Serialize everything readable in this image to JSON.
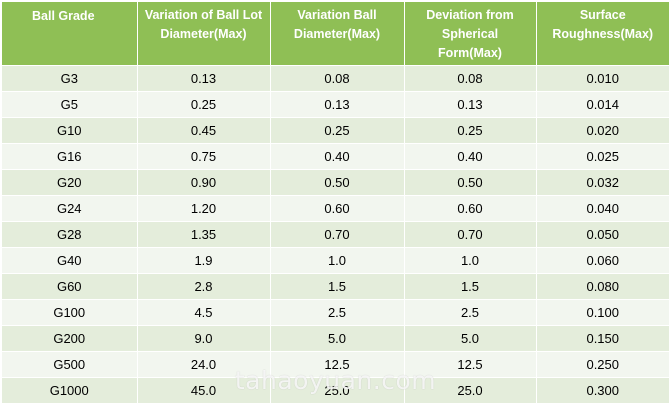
{
  "table": {
    "headers": [
      "Ball Grade",
      "Variation of  Ball Lot Diameter(Max)",
      "Variation Ball Diameter(Max)",
      "Deviation from Spherical Form(Max)",
      "Surface Roughness(Max)"
    ],
    "rows": [
      [
        "G3",
        "0.13",
        "0.08",
        "0.08",
        "0.010"
      ],
      [
        "G5",
        "0.25",
        "0.13",
        "0.13",
        "0.014"
      ],
      [
        "G10",
        "0.45",
        "0.25",
        "0.25",
        "0.020"
      ],
      [
        "G16",
        "0.75",
        "0.40",
        "0.40",
        "0.025"
      ],
      [
        "G20",
        "0.90",
        "0.50",
        "0.50",
        "0.032"
      ],
      [
        "G24",
        "1.20",
        "0.60",
        "0.60",
        "0.040"
      ],
      [
        "G28",
        "1.35",
        "0.70",
        "0.70",
        "0.050"
      ],
      [
        "G40",
        "1.9",
        "1.0",
        "1.0",
        "0.060"
      ],
      [
        "G60",
        "2.8",
        "1.5",
        "1.5",
        "0.080"
      ],
      [
        "G100",
        "4.5",
        "2.5",
        "2.5",
        "0.100"
      ],
      [
        "G200",
        "9.0",
        "5.0",
        "5.0",
        "0.150"
      ],
      [
        "G500",
        "24.0",
        "12.5",
        "12.5",
        "0.250"
      ],
      [
        "G1000",
        "45.0",
        "25.0",
        "25.0",
        "0.300"
      ]
    ]
  },
  "watermark": "tahaoyuan.com",
  "colors": {
    "header_bg": "#8fbf55",
    "header_text": "#ffffff",
    "row_odd": "#e4eddb",
    "row_even": "#f2f6ef"
  }
}
